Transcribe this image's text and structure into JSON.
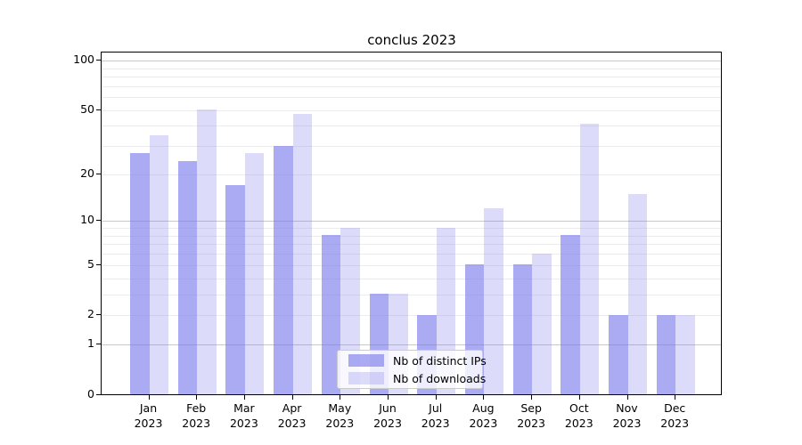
{
  "chart_data": {
    "type": "bar",
    "title": "conclus 2023",
    "categories": [
      "Jan",
      "Feb",
      "Mar",
      "Apr",
      "May",
      "Jun",
      "Jul",
      "Aug",
      "Sep",
      "Oct",
      "Nov",
      "Dec"
    ],
    "x_year_label": "2023",
    "series": [
      {
        "name": "Nb of distinct IPs",
        "values": [
          27,
          24,
          17,
          30,
          8,
          3,
          2,
          5,
          5,
          8,
          2,
          2
        ],
        "color_hex": "#ababf4",
        "alpha": 0.62
      },
      {
        "name": "Nb of downloads",
        "values": [
          35,
          50,
          27,
          47,
          9,
          3,
          9,
          12,
          6,
          41,
          15,
          2
        ],
        "color_hex": "#dcdcf9",
        "alpha": 0.26
      }
    ],
    "bar_base_rgb": [
      120,
      120,
      235
    ],
    "y_scale": "log1p",
    "ylabel": "",
    "xlabel": "",
    "y_ticks": [
      0,
      1,
      2,
      5,
      10,
      20,
      50,
      100
    ],
    "y_minor_gridlines": [
      3,
      4,
      6,
      7,
      8,
      9,
      30,
      40,
      60,
      70,
      80,
      90
    ],
    "y_major_gridlines": [
      1,
      10,
      100
    ],
    "ylim": [
      0,
      110
    ],
    "grid": "on",
    "legend_position": "lower-center",
    "colors": {
      "grid_minor": "#ececec",
      "grid_major": "#c8c8c8",
      "axis": "#000000",
      "text": "#000000",
      "legend_border": "#cbcbcb"
    }
  }
}
